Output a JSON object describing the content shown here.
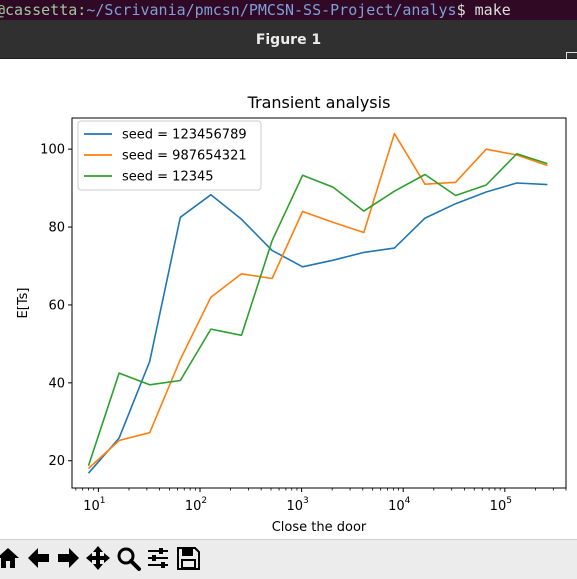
{
  "terminal": {
    "prompt_user": "@cassetta:",
    "prompt_path": "~/Scrivania/pmcsn/PMCSN-SS-Project/analys",
    "prompt_cmd": "$ make"
  },
  "window": {
    "title": "Figure 1",
    "minimize_glyph": "_"
  },
  "toolbar": {
    "buttons": [
      {
        "name": "home",
        "icon": "home-icon"
      },
      {
        "name": "back",
        "icon": "arrow-left-icon"
      },
      {
        "name": "forward",
        "icon": "arrow-right-icon"
      },
      {
        "name": "pan",
        "icon": "move-icon"
      },
      {
        "name": "zoom",
        "icon": "magnifier-icon"
      },
      {
        "name": "configure",
        "icon": "sliders-icon"
      },
      {
        "name": "save",
        "icon": "floppy-icon"
      }
    ]
  },
  "chart_data": {
    "type": "line",
    "title": "Transient analysis",
    "xlabel": "Close the door",
    "ylabel": "E[Ts]",
    "xscale": "log",
    "xlim": [
      5.5,
      400000
    ],
    "ylim": [
      13,
      108
    ],
    "yticks": [
      20,
      40,
      60,
      80,
      100
    ],
    "xticks": [
      {
        "value": 10,
        "base": "10",
        "exp": "1"
      },
      {
        "value": 100,
        "base": "10",
        "exp": "2"
      },
      {
        "value": 1000,
        "base": "10",
        "exp": "3"
      },
      {
        "value": 10000,
        "base": "10",
        "exp": "4"
      },
      {
        "value": 100000,
        "base": "10",
        "exp": "5"
      }
    ],
    "legend_position": "top-left",
    "grid": false,
    "x": [
      8,
      16,
      32,
      64,
      128,
      256,
      512,
      1024,
      2048,
      4096,
      8192,
      16384,
      32768,
      65536,
      131072,
      262144
    ],
    "series": [
      {
        "name": "seed = 123456789",
        "color": "#1f77b4",
        "values": [
          16.8,
          25.8,
          45.5,
          82.5,
          88.3,
          82.0,
          74.0,
          69.8,
          71.5,
          73.5,
          74.6,
          82.3,
          86.0,
          89.0,
          91.3,
          90.9
        ]
      },
      {
        "name": "seed = 987654321",
        "color": "#ff7f0e",
        "values": [
          18.0,
          25.2,
          27.2,
          46.0,
          62.0,
          68.0,
          66.8,
          84.0,
          81.2,
          78.6,
          104.0,
          91.0,
          91.5,
          100.0,
          98.5,
          95.8
        ]
      },
      {
        "name": "seed = 12345",
        "color": "#2ca02c",
        "values": [
          18.7,
          42.5,
          39.5,
          40.6,
          53.8,
          52.2,
          76.5,
          93.3,
          90.2,
          84.1,
          89.2,
          93.5,
          88.1,
          90.8,
          98.8,
          96.3
        ]
      }
    ]
  }
}
